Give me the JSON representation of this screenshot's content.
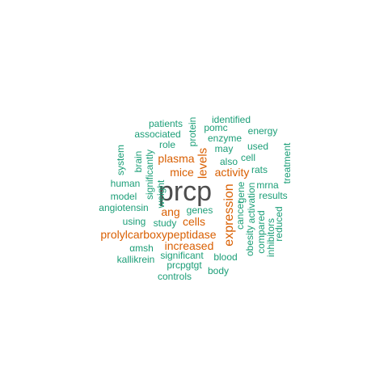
{
  "colors": {
    "center": "#4d4d4d",
    "orange": "#d95f02",
    "green": "#1b9e77"
  },
  "words": [
    {
      "id": "prcp",
      "text": "prcp",
      "color": "#4d4d4d"
    },
    {
      "id": "expression",
      "text": "expression",
      "color": "#d95f02"
    },
    {
      "id": "prolylcarboxypeptidase",
      "text": "prolylcarboxypeptidase",
      "color": "#d95f02"
    },
    {
      "id": "levels",
      "text": "levels",
      "color": "#d95f02"
    },
    {
      "id": "plasma",
      "text": "plasma",
      "color": "#d95f02"
    },
    {
      "id": "mice",
      "text": "mice",
      "color": "#d95f02"
    },
    {
      "id": "activity",
      "text": "activity",
      "color": "#d95f02"
    },
    {
      "id": "ang",
      "text": "ang",
      "color": "#d95f02"
    },
    {
      "id": "cells",
      "text": "cells",
      "color": "#d95f02"
    },
    {
      "id": "increased",
      "text": "increased",
      "color": "#d95f02"
    },
    {
      "id": "patients",
      "text": "patients",
      "color": "#1b9e77"
    },
    {
      "id": "identified",
      "text": "identified",
      "color": "#1b9e77"
    },
    {
      "id": "protein",
      "text": "protein",
      "color": "#1b9e77"
    },
    {
      "id": "pomc",
      "text": "pomc",
      "color": "#1b9e77"
    },
    {
      "id": "associated",
      "text": "associated",
      "color": "#1b9e77"
    },
    {
      "id": "energy",
      "text": "energy",
      "color": "#1b9e77"
    },
    {
      "id": "enzyme",
      "text": "enzyme",
      "color": "#1b9e77"
    },
    {
      "id": "role",
      "text": "role",
      "color": "#1b9e77"
    },
    {
      "id": "may",
      "text": "may",
      "color": "#1b9e77"
    },
    {
      "id": "used",
      "text": "used",
      "color": "#1b9e77"
    },
    {
      "id": "treatment",
      "text": "treatment",
      "color": "#1b9e77"
    },
    {
      "id": "system",
      "text": "system",
      "color": "#1b9e77"
    },
    {
      "id": "brain",
      "text": "brain",
      "color": "#1b9e77"
    },
    {
      "id": "significantly",
      "text": "significantly",
      "color": "#1b9e77"
    },
    {
      "id": "cell",
      "text": "cell",
      "color": "#1b9e77"
    },
    {
      "id": "also",
      "text": "also",
      "color": "#1b9e77"
    },
    {
      "id": "rats",
      "text": "rats",
      "color": "#1b9e77"
    },
    {
      "id": "human",
      "text": "human",
      "color": "#1b9e77"
    },
    {
      "id": "weight",
      "text": "weight",
      "color": "#1b9e77"
    },
    {
      "id": "mrna",
      "text": "mrna",
      "color": "#1b9e77"
    },
    {
      "id": "model",
      "text": "model",
      "color": "#1b9e77"
    },
    {
      "id": "results",
      "text": "results",
      "color": "#1b9e77"
    },
    {
      "id": "gene",
      "text": "gene",
      "color": "#1b9e77"
    },
    {
      "id": "cancer",
      "text": "cancer",
      "color": "#1b9e77"
    },
    {
      "id": "activation",
      "text": "activation",
      "color": "#1b9e77"
    },
    {
      "id": "angiotensin",
      "text": "angiotensin",
      "color": "#1b9e77"
    },
    {
      "id": "genes",
      "text": "genes",
      "color": "#1b9e77"
    },
    {
      "id": "reduced",
      "text": "reduced",
      "color": "#1b9e77"
    },
    {
      "id": "using",
      "text": "using",
      "color": "#1b9e77"
    },
    {
      "id": "study",
      "text": "study",
      "color": "#1b9e77"
    },
    {
      "id": "obesity",
      "text": "obesity",
      "color": "#1b9e77"
    },
    {
      "id": "compared",
      "text": "compared",
      "color": "#1b9e77"
    },
    {
      "id": "inhibitors",
      "text": "inhibitors",
      "color": "#1b9e77"
    },
    {
      "id": "amsh",
      "text": "αmsh",
      "color": "#1b9e77"
    },
    {
      "id": "significant",
      "text": "significant",
      "color": "#1b9e77"
    },
    {
      "id": "kallikrein",
      "text": "kallikrein",
      "color": "#1b9e77"
    },
    {
      "id": "blood",
      "text": "blood",
      "color": "#1b9e77"
    },
    {
      "id": "prcpgtgt",
      "text": "prcpgtgt",
      "color": "#1b9e77"
    },
    {
      "id": "body",
      "text": "body",
      "color": "#1b9e77"
    },
    {
      "id": "controls",
      "text": "controls",
      "color": "#1b9e77"
    }
  ]
}
